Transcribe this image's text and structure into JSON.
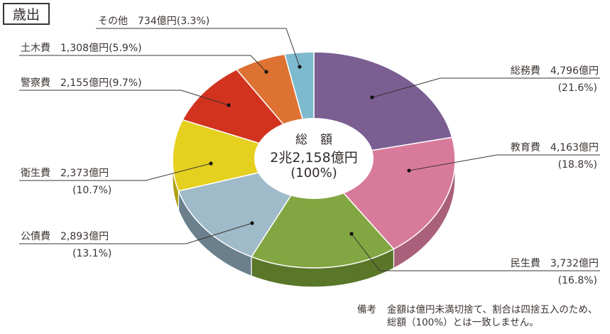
{
  "header": {
    "title": "歳出"
  },
  "center": {
    "line1": "総額",
    "line2": "2兆2,158億円",
    "line3": "(100%)"
  },
  "labels": {
    "somu": {
      "name": "総務費",
      "amount": "4,796億円",
      "pct": "(21.6%)"
    },
    "kyoiku": {
      "name": "教育費",
      "amount": "4,163億円",
      "pct": "(18.8%)"
    },
    "minsei": {
      "name": "民生費",
      "amount": "3,732億円",
      "pct": "(16.8%)"
    },
    "kosai": {
      "name": "公債費",
      "amount": "2,893億円",
      "pct": "(13.1%)"
    },
    "eisei": {
      "name": "衛生費",
      "amount": "2,373億円",
      "pct": "(10.7%)"
    },
    "keisatsu": {
      "name": "警察費",
      "amount": "2,155億円",
      "pct": "(9.7%)"
    },
    "doboku": {
      "name": "土木費",
      "amount": "1,308億円",
      "pct": "(5.9%)"
    },
    "sonota": {
      "name": "その他",
      "amount": "734億円",
      "pct": "(3.3%)"
    }
  },
  "note": {
    "key": "備考",
    "line1": "金額は億円未満切捨て、割合は四捨五入のため、",
    "line2": "総額（100%）とは一致しません。"
  },
  "chart_data": {
    "type": "pie",
    "variant": "3d-donut",
    "title": "歳出",
    "center_label": "総額 2兆2,158億円 (100%)",
    "unit": "億円",
    "start_angle": "12 o'clock, clockwise",
    "categories": [
      "総務費",
      "教育費",
      "民生費",
      "公債費",
      "衛生費",
      "警察費",
      "土木費",
      "その他"
    ],
    "values": [
      4796,
      4163,
      3732,
      2893,
      2373,
      2155,
      1308,
      734
    ],
    "percentages": [
      21.6,
      18.8,
      16.8,
      13.1,
      10.7,
      9.7,
      5.9,
      3.3
    ],
    "total": 22158,
    "colors": [
      "#7b5e92",
      "#d87b9b",
      "#82a641",
      "#9fbac9",
      "#e5d020",
      "#d2331f",
      "#de7232",
      "#7ebacd"
    ],
    "side_colors": [
      "#5e4672",
      "#a9607a",
      "#5a7629",
      "#6b808c",
      "#b09f10",
      "#9b2414",
      "#a6531f",
      "#5a8a99"
    ],
    "annotation": "備考 金額は億円未満切捨て、割合は四捨五入のため、総額（100%）とは一致しません。"
  }
}
